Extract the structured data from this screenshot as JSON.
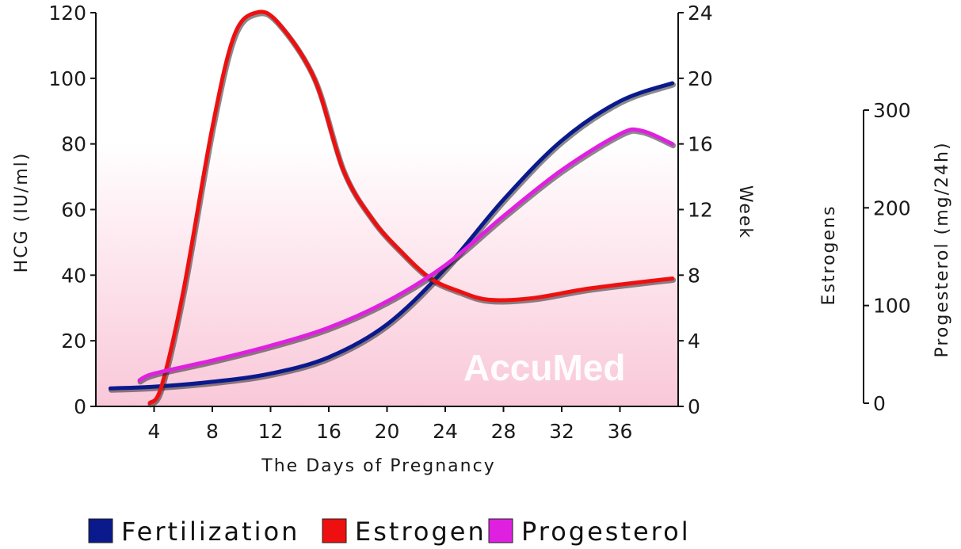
{
  "chart_data": {
    "type": "line",
    "watermark": "AccuMed",
    "xlabel": "The Days of Pregnancy",
    "x_ticks": [
      "4",
      "8",
      "12",
      "16",
      "20",
      "24",
      "28",
      "32",
      "36"
    ],
    "xlim": [
      0,
      40
    ],
    "left_axis": {
      "label": "HCG (IU/ml)",
      "ticks": [
        "0",
        "20",
        "40",
        "60",
        "80",
        "100",
        "120"
      ],
      "ylim": [
        0,
        120
      ]
    },
    "week_axis": {
      "label": "Week",
      "ticks": [
        "0",
        "4",
        "8",
        "12",
        "16",
        "20",
        "24"
      ],
      "ylim": [
        0,
        24
      ]
    },
    "right_axis": {
      "label_1": "Estrogens",
      "label_2": "Progesterol (mg/24h)",
      "ticks": [
        "0",
        "100",
        "200",
        "300"
      ],
      "ylim": [
        0,
        300
      ]
    },
    "series": [
      {
        "name": "Fertilization",
        "color": "#0a1a8c",
        "x": [
          1,
          4,
          8,
          12,
          16,
          20,
          24,
          28,
          32,
          36,
          39.6
        ],
        "y": [
          5.5,
          6,
          7.5,
          10,
          15,
          25,
          42,
          63,
          81,
          93,
          98.5
        ]
      },
      {
        "name": "Estrogen",
        "color": "#ee1010",
        "x": [
          3.7,
          4.5,
          6,
          8,
          9.5,
          11,
          12.5,
          15,
          17,
          19,
          21,
          23,
          25,
          27,
          30,
          34,
          39.6
        ],
        "y": [
          1,
          6,
          35,
          85,
          113,
          120,
          117,
          100,
          72,
          57,
          47,
          39,
          35,
          32.5,
          33,
          36,
          39
        ]
      },
      {
        "name": "Progesterol",
        "color": "#e020e0",
        "x": [
          3,
          4,
          8,
          12,
          16,
          20,
          24,
          28,
          32,
          36,
          37.5,
          39.6
        ],
        "y": [
          8,
          10,
          14,
          18.5,
          24,
          32,
          43,
          58,
          72,
          83,
          84,
          80
        ]
      }
    ],
    "legend": {
      "position": "bottom",
      "items": [
        {
          "label": "Fertilization",
          "color": "#0a1a8c"
        },
        {
          "label": "Estrogen",
          "color": "#ee1010"
        },
        {
          "label": "Progesterol",
          "color": "#e020e0"
        }
      ]
    }
  }
}
